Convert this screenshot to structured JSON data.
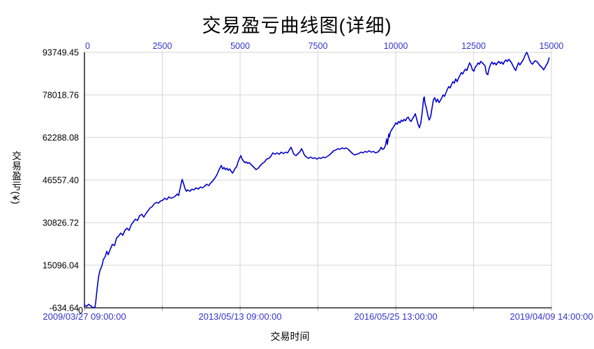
{
  "window": {
    "background": "#FFFFFF"
  },
  "colors": {
    "line": "#0000CC",
    "blue_label": "#3333CC",
    "text": "#000000",
    "grid": "#D6D6D6",
    "tick": "#999999",
    "axis": "#000000",
    "background": "#FFFFFF"
  },
  "chart_data": {
    "type": "line",
    "title": "交易盈亏曲线图(详细)",
    "xlabel": "交易时间",
    "ylabel": "交易盈亏(¥)",
    "xlim": [
      0,
      15000
    ],
    "ylim": [
      -634.64,
      93749.45
    ],
    "grid": true,
    "legend": false,
    "x_ticks_top": [
      {
        "value": 0,
        "label": "0"
      },
      {
        "value": 2500,
        "label": "2500"
      },
      {
        "value": 5000,
        "label": "5000"
      },
      {
        "value": 7500,
        "label": "7500"
      },
      {
        "value": 10000,
        "label": "10000"
      },
      {
        "value": 12500,
        "label": "12500"
      },
      {
        "value": 15000,
        "label": "15000"
      }
    ],
    "y_ticks": [
      {
        "value": 93749.45,
        "label": "93749.45"
      },
      {
        "value": 78018.76,
        "label": "78018.76"
      },
      {
        "value": 62288.08,
        "label": "62288.08"
      },
      {
        "value": 46557.4,
        "label": "46557.40"
      },
      {
        "value": 30826.72,
        "label": "30826.72"
      },
      {
        "value": 15096.04,
        "label": "15096.04"
      },
      {
        "value": -634.64,
        "label": "-634.64"
      }
    ],
    "x_ticks_bottom": [
      {
        "value": 0,
        "label": "2009/03/27 09:00:00"
      },
      {
        "value": 5000,
        "label": "2013/05/13 09:00:00"
      },
      {
        "value": 10000,
        "label": "2016/05/25 13:00:00"
      },
      {
        "value": 15000,
        "label": "2019/04/09 14:00:00"
      }
    ],
    "origin_tick_label": "0",
    "series": [
      {
        "name": "交易盈亏",
        "color": "#0000CC",
        "points": [
          [
            0,
            397
          ],
          [
            67,
            -119
          ],
          [
            135,
            655
          ],
          [
            202,
            139
          ],
          [
            269,
            -634
          ],
          [
            336,
            -377
          ],
          [
            359,
            1171
          ],
          [
            404,
            6070
          ],
          [
            448,
            10454
          ],
          [
            493,
            13033
          ],
          [
            560,
            14838
          ],
          [
            605,
            17159
          ],
          [
            673,
            18449
          ],
          [
            717,
            20254
          ],
          [
            762,
            18964
          ],
          [
            830,
            21027
          ],
          [
            897,
            22832
          ],
          [
            964,
            22317
          ],
          [
            1031,
            25153
          ],
          [
            1099,
            25927
          ],
          [
            1166,
            26959
          ],
          [
            1233,
            26185
          ],
          [
            1300,
            27990
          ],
          [
            1368,
            28764
          ],
          [
            1435,
            27990
          ],
          [
            1502,
            30053
          ],
          [
            1569,
            31085
          ],
          [
            1637,
            32116
          ],
          [
            1704,
            31600
          ],
          [
            1771,
            33406
          ],
          [
            1838,
            33921
          ],
          [
            1906,
            32890
          ],
          [
            1973,
            34179
          ],
          [
            2040,
            35211
          ],
          [
            2107,
            36242
          ],
          [
            2175,
            36758
          ],
          [
            2242,
            37790
          ],
          [
            2309,
            38305
          ],
          [
            2376,
            38047
          ],
          [
            2444,
            38821
          ],
          [
            2511,
            39079
          ],
          [
            2578,
            39853
          ],
          [
            2645,
            39337
          ],
          [
            2713,
            40368
          ],
          [
            2780,
            39853
          ],
          [
            2847,
            40111
          ],
          [
            2915,
            40626
          ],
          [
            2982,
            41400
          ],
          [
            3027,
            40884
          ],
          [
            3072,
            43463
          ],
          [
            3116,
            45784
          ],
          [
            3139,
            46815
          ],
          [
            3184,
            45268
          ],
          [
            3229,
            43463
          ],
          [
            3273,
            42432
          ],
          [
            3318,
            42947
          ],
          [
            3385,
            42432
          ],
          [
            3453,
            43205
          ],
          [
            3520,
            42947
          ],
          [
            3587,
            43721
          ],
          [
            3654,
            43205
          ],
          [
            3722,
            43979
          ],
          [
            3789,
            43721
          ],
          [
            3856,
            44237
          ],
          [
            3924,
            45010
          ],
          [
            3991,
            44495
          ],
          [
            4058,
            45526
          ],
          [
            4125,
            46300
          ],
          [
            4193,
            47331
          ],
          [
            4260,
            48621
          ],
          [
            4305,
            49910
          ],
          [
            4350,
            50941
          ],
          [
            4395,
            51973
          ],
          [
            4440,
            50683
          ],
          [
            4484,
            51199
          ],
          [
            4529,
            50426
          ],
          [
            4574,
            50941
          ],
          [
            4619,
            50168
          ],
          [
            4663,
            50683
          ],
          [
            4708,
            49910
          ],
          [
            4753,
            49136
          ],
          [
            4798,
            49910
          ],
          [
            4843,
            50941
          ],
          [
            4888,
            51457
          ],
          [
            4932,
            53262
          ],
          [
            4977,
            54552
          ],
          [
            5022,
            55583
          ],
          [
            5067,
            54294
          ],
          [
            5112,
            53520
          ],
          [
            5157,
            53004
          ],
          [
            5201,
            53262
          ],
          [
            5246,
            52746
          ],
          [
            5291,
            53004
          ],
          [
            5336,
            52489
          ],
          [
            5381,
            51973
          ],
          [
            5448,
            51199
          ],
          [
            5515,
            50426
          ],
          [
            5583,
            50941
          ],
          [
            5650,
            51973
          ],
          [
            5717,
            52746
          ],
          [
            5784,
            53262
          ],
          [
            5852,
            54294
          ],
          [
            5919,
            54552
          ],
          [
            5986,
            55325
          ],
          [
            6054,
            56615
          ],
          [
            6121,
            56099
          ],
          [
            6188,
            56615
          ],
          [
            6255,
            56099
          ],
          [
            6323,
            56873
          ],
          [
            6390,
            56357
          ],
          [
            6457,
            56873
          ],
          [
            6524,
            56615
          ],
          [
            6592,
            57904
          ],
          [
            6636,
            58678
          ],
          [
            6681,
            57389
          ],
          [
            6726,
            56099
          ],
          [
            6793,
            55583
          ],
          [
            6861,
            56357
          ],
          [
            6928,
            57131
          ],
          [
            6973,
            58162
          ],
          [
            7018,
            57131
          ],
          [
            7062,
            55841
          ],
          [
            7130,
            55068
          ],
          [
            7197,
            54552
          ],
          [
            7264,
            55068
          ],
          [
            7331,
            54552
          ],
          [
            7399,
            54810
          ],
          [
            7466,
            54294
          ],
          [
            7533,
            54810
          ],
          [
            7601,
            54552
          ],
          [
            7668,
            55068
          ],
          [
            7735,
            54810
          ],
          [
            7802,
            55325
          ],
          [
            7870,
            55841
          ],
          [
            7937,
            56615
          ],
          [
            8004,
            57389
          ],
          [
            8071,
            57647
          ],
          [
            8139,
            58162
          ],
          [
            8206,
            57904
          ],
          [
            8273,
            58420
          ],
          [
            8341,
            58162
          ],
          [
            8408,
            58420
          ],
          [
            8475,
            57904
          ],
          [
            8542,
            57131
          ],
          [
            8610,
            56357
          ],
          [
            8677,
            55841
          ],
          [
            8744,
            56099
          ],
          [
            8811,
            56357
          ],
          [
            8879,
            56873
          ],
          [
            8946,
            56615
          ],
          [
            9013,
            57131
          ],
          [
            9081,
            56873
          ],
          [
            9148,
            57389
          ],
          [
            9215,
            56873
          ],
          [
            9282,
            57131
          ],
          [
            9350,
            56615
          ],
          [
            9417,
            56873
          ],
          [
            9484,
            57647
          ],
          [
            9529,
            58678
          ],
          [
            9574,
            57904
          ],
          [
            9619,
            58162
          ],
          [
            9664,
            59194
          ],
          [
            9686,
            60483
          ],
          [
            9708,
            61773
          ],
          [
            9731,
            59709
          ],
          [
            9753,
            61515
          ],
          [
            9775,
            63578
          ],
          [
            9798,
            62547
          ],
          [
            9820,
            64094
          ],
          [
            9865,
            65125
          ],
          [
            9910,
            65899
          ],
          [
            9954,
            66673
          ],
          [
            9999,
            67704
          ],
          [
            10044,
            67188
          ],
          [
            10089,
            68220
          ],
          [
            10134,
            67704
          ],
          [
            10179,
            68736
          ],
          [
            10223,
            68220
          ],
          [
            10268,
            68994
          ],
          [
            10313,
            68478
          ],
          [
            10358,
            69509
          ],
          [
            10403,
            69767
          ],
          [
            10447,
            68736
          ],
          [
            10492,
            68220
          ],
          [
            10537,
            69251
          ],
          [
            10582,
            70025
          ],
          [
            10627,
            71057
          ],
          [
            10671,
            69251
          ],
          [
            10716,
            67188
          ],
          [
            10761,
            65899
          ],
          [
            10806,
            67704
          ],
          [
            10851,
            71830
          ],
          [
            10895,
            76731
          ],
          [
            10918,
            77246
          ],
          [
            10940,
            74925
          ],
          [
            10985,
            73120
          ],
          [
            11030,
            70541
          ],
          [
            11075,
            68736
          ],
          [
            11120,
            70025
          ],
          [
            11164,
            73120
          ],
          [
            11209,
            76215
          ],
          [
            11254,
            76988
          ],
          [
            11299,
            75441
          ],
          [
            11344,
            76473
          ],
          [
            11388,
            75183
          ],
          [
            11433,
            75957
          ],
          [
            11478,
            76988
          ],
          [
            11523,
            78020
          ],
          [
            11568,
            77504
          ],
          [
            11612,
            78794
          ],
          [
            11657,
            80083
          ],
          [
            11702,
            81115
          ],
          [
            11747,
            80599
          ],
          [
            11791,
            81889
          ],
          [
            11836,
            82920
          ],
          [
            11881,
            82404
          ],
          [
            11926,
            83952
          ],
          [
            11971,
            82920
          ],
          [
            12015,
            84210
          ],
          [
            12060,
            85241
          ],
          [
            12105,
            86273
          ],
          [
            12150,
            85757
          ],
          [
            12195,
            86789
          ],
          [
            12239,
            87562
          ],
          [
            12284,
            87046
          ],
          [
            12329,
            88594
          ],
          [
            12374,
            89884
          ],
          [
            12419,
            88852
          ],
          [
            12463,
            87304
          ],
          [
            12508,
            86789
          ],
          [
            12553,
            88336
          ],
          [
            12598,
            88852
          ],
          [
            12643,
            89884
          ],
          [
            12687,
            89368
          ],
          [
            12732,
            90399
          ],
          [
            12777,
            89884
          ],
          [
            12822,
            89368
          ],
          [
            12866,
            88852
          ],
          [
            12911,
            86015
          ],
          [
            12956,
            85499
          ],
          [
            13001,
            87820
          ],
          [
            13046,
            89368
          ],
          [
            13090,
            90141
          ],
          [
            13135,
            89368
          ],
          [
            13180,
            89884
          ],
          [
            13225,
            89110
          ],
          [
            13270,
            89884
          ],
          [
            13314,
            90399
          ],
          [
            13359,
            89626
          ],
          [
            13404,
            90141
          ],
          [
            13449,
            89368
          ],
          [
            13494,
            90399
          ],
          [
            13538,
            90915
          ],
          [
            13583,
            90399
          ],
          [
            13628,
            91173
          ],
          [
            13673,
            90657
          ],
          [
            13718,
            89884
          ],
          [
            13762,
            88852
          ],
          [
            13807,
            87820
          ],
          [
            13852,
            87046
          ],
          [
            13897,
            88594
          ],
          [
            13941,
            89884
          ],
          [
            13986,
            89110
          ],
          [
            14031,
            89884
          ],
          [
            14076,
            90657
          ],
          [
            14121,
            91689
          ],
          [
            14166,
            92978
          ],
          [
            14210,
            93749.45
          ],
          [
            14255,
            92462
          ],
          [
            14300,
            90915
          ],
          [
            14345,
            89884
          ],
          [
            14389,
            89368
          ],
          [
            14434,
            90141
          ],
          [
            14479,
            90657
          ],
          [
            14524,
            90399
          ],
          [
            14568,
            89884
          ],
          [
            14613,
            89110
          ],
          [
            14658,
            88594
          ],
          [
            14703,
            88078
          ],
          [
            14748,
            87304
          ],
          [
            14792,
            88078
          ],
          [
            14837,
            89110
          ],
          [
            14882,
            89884
          ],
          [
            14927,
            91689
          ]
        ]
      }
    ]
  }
}
